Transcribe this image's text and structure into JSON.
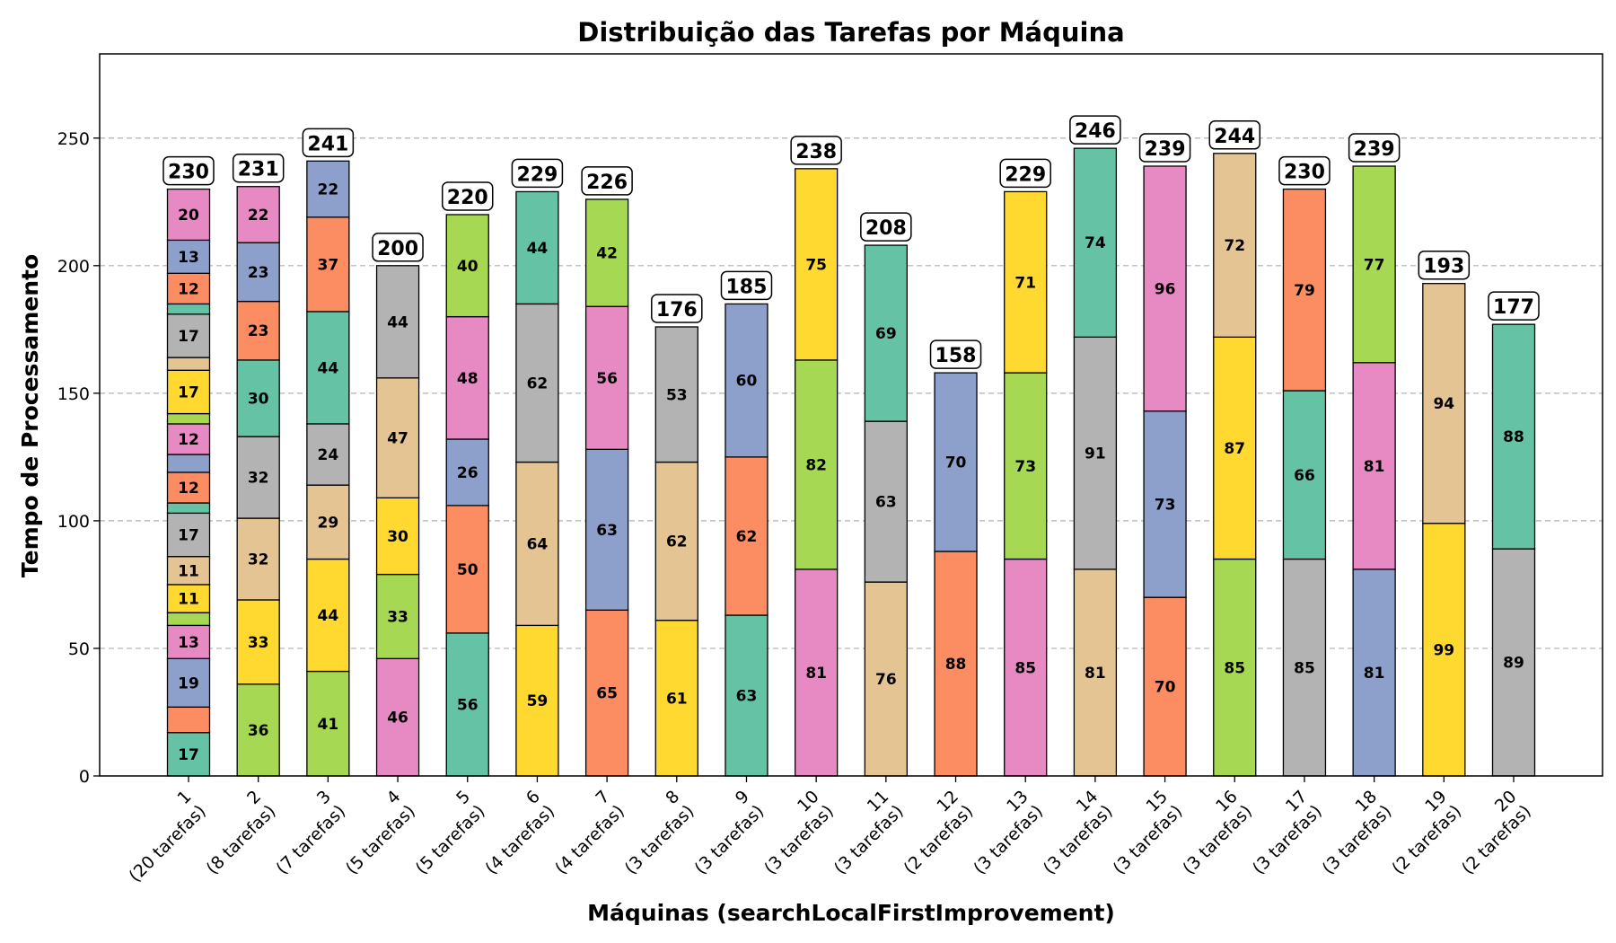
{
  "chart_data": {
    "type": "bar",
    "stacked": true,
    "title": "Distribuição das Tarefas por Máquina",
    "xlabel": "Máquinas (searchLocalFirstImprovement)",
    "ylabel": "Tempo de Processamento",
    "ylim": [
      0,
      283
    ],
    "yticks": [
      0,
      50,
      100,
      150,
      200,
      250
    ],
    "grid": "horizontal dashed",
    "palette": [
      "#66c2a5",
      "#fc8d62",
      "#8da0cb",
      "#e78ac3",
      "#a6d854",
      "#ffd92f",
      "#e5c494",
      "#b3b3b3"
    ],
    "categories": [
      {
        "line1": "1",
        "line2": "(20 tarefas)"
      },
      {
        "line1": "2",
        "line2": "(8 tarefas)"
      },
      {
        "line1": "3",
        "line2": "(7 tarefas)"
      },
      {
        "line1": "4",
        "line2": "(5 tarefas)"
      },
      {
        "line1": "5",
        "line2": "(5 tarefas)"
      },
      {
        "line1": "6",
        "line2": "(4 tarefas)"
      },
      {
        "line1": "7",
        "line2": "(4 tarefas)"
      },
      {
        "line1": "8",
        "line2": "(3 tarefas)"
      },
      {
        "line1": "9",
        "line2": "(3 tarefas)"
      },
      {
        "line1": "10",
        "line2": "(3 tarefas)"
      },
      {
        "line1": "11",
        "line2": "(3 tarefas)"
      },
      {
        "line1": "12",
        "line2": "(2 tarefas)"
      },
      {
        "line1": "13",
        "line2": "(3 tarefas)"
      },
      {
        "line1": "14",
        "line2": "(3 tarefas)"
      },
      {
        "line1": "15",
        "line2": "(3 tarefas)"
      },
      {
        "line1": "16",
        "line2": "(3 tarefas)"
      },
      {
        "line1": "17",
        "line2": "(3 tarefas)"
      },
      {
        "line1": "18",
        "line2": "(3 tarefas)"
      },
      {
        "line1": "19",
        "line2": "(2 tarefas)"
      },
      {
        "line1": "20",
        "line2": "(2 tarefas)"
      }
    ],
    "machines": [
      {
        "total": 230,
        "segments": [
          {
            "value": 17,
            "color": "#66c2a5",
            "label": "17"
          },
          {
            "value": 10,
            "color": "#fc8d62",
            "label": ""
          },
          {
            "value": 19,
            "color": "#8da0cb",
            "label": "19"
          },
          {
            "value": 13,
            "color": "#e78ac3",
            "label": "13"
          },
          {
            "value": 5,
            "color": "#a6d854",
            "label": ""
          },
          {
            "value": 11,
            "color": "#ffd92f",
            "label": "11"
          },
          {
            "value": 11,
            "color": "#e5c494",
            "label": "11"
          },
          {
            "value": 17,
            "color": "#b3b3b3",
            "label": "17"
          },
          {
            "value": 4,
            "color": "#66c2a5",
            "label": ""
          },
          {
            "value": 12,
            "color": "#fc8d62",
            "label": "12"
          },
          {
            "value": 7,
            "color": "#8da0cb",
            "label": ""
          },
          {
            "value": 12,
            "color": "#e78ac3",
            "label": "12"
          },
          {
            "value": 4,
            "color": "#a6d854",
            "label": ""
          },
          {
            "value": 17,
            "color": "#ffd92f",
            "label": "17"
          },
          {
            "value": 5,
            "color": "#e5c494",
            "label": ""
          },
          {
            "value": 17,
            "color": "#b3b3b3",
            "label": "17"
          },
          {
            "value": 4,
            "color": "#66c2a5",
            "label": ""
          },
          {
            "value": 12,
            "color": "#fc8d62",
            "label": "12"
          },
          {
            "value": 13,
            "color": "#8da0cb",
            "label": "13"
          },
          {
            "value": 20,
            "color": "#e78ac3",
            "label": "20"
          }
        ]
      },
      {
        "total": 231,
        "segments": [
          {
            "value": 36,
            "color": "#a6d854",
            "label": "36"
          },
          {
            "value": 33,
            "color": "#ffd92f",
            "label": "33"
          },
          {
            "value": 32,
            "color": "#e5c494",
            "label": "32"
          },
          {
            "value": 32,
            "color": "#b3b3b3",
            "label": "32"
          },
          {
            "value": 30,
            "color": "#66c2a5",
            "label": "30"
          },
          {
            "value": 23,
            "color": "#fc8d62",
            "label": "23"
          },
          {
            "value": 23,
            "color": "#8da0cb",
            "label": "23"
          },
          {
            "value": 22,
            "color": "#e78ac3",
            "label": "22"
          }
        ]
      },
      {
        "total": 241,
        "segments": [
          {
            "value": 41,
            "color": "#a6d854",
            "label": "41"
          },
          {
            "value": 44,
            "color": "#ffd92f",
            "label": "44"
          },
          {
            "value": 29,
            "color": "#e5c494",
            "label": "29"
          },
          {
            "value": 24,
            "color": "#b3b3b3",
            "label": "24"
          },
          {
            "value": 44,
            "color": "#66c2a5",
            "label": "44"
          },
          {
            "value": 37,
            "color": "#fc8d62",
            "label": "37"
          },
          {
            "value": 22,
            "color": "#8da0cb",
            "label": "22"
          }
        ]
      },
      {
        "total": 200,
        "segments": [
          {
            "value": 46,
            "color": "#e78ac3",
            "label": "46"
          },
          {
            "value": 33,
            "color": "#a6d854",
            "label": "33"
          },
          {
            "value": 30,
            "color": "#ffd92f",
            "label": "30"
          },
          {
            "value": 47,
            "color": "#e5c494",
            "label": "47"
          },
          {
            "value": 44,
            "color": "#b3b3b3",
            "label": "44"
          }
        ]
      },
      {
        "total": 220,
        "segments": [
          {
            "value": 56,
            "color": "#66c2a5",
            "label": "56"
          },
          {
            "value": 50,
            "color": "#fc8d62",
            "label": "50"
          },
          {
            "value": 26,
            "color": "#8da0cb",
            "label": "26"
          },
          {
            "value": 48,
            "color": "#e78ac3",
            "label": "48"
          },
          {
            "value": 40,
            "color": "#a6d854",
            "label": "40"
          }
        ]
      },
      {
        "total": 229,
        "segments": [
          {
            "value": 59,
            "color": "#ffd92f",
            "label": "59"
          },
          {
            "value": 64,
            "color": "#e5c494",
            "label": "64"
          },
          {
            "value": 62,
            "color": "#b3b3b3",
            "label": "62"
          },
          {
            "value": 44,
            "color": "#66c2a5",
            "label": "44"
          }
        ]
      },
      {
        "total": 226,
        "segments": [
          {
            "value": 65,
            "color": "#fc8d62",
            "label": "65"
          },
          {
            "value": 63,
            "color": "#8da0cb",
            "label": "63"
          },
          {
            "value": 56,
            "color": "#e78ac3",
            "label": "56"
          },
          {
            "value": 42,
            "color": "#a6d854",
            "label": "42"
          }
        ]
      },
      {
        "total": 176,
        "segments": [
          {
            "value": 61,
            "color": "#ffd92f",
            "label": "61"
          },
          {
            "value": 62,
            "color": "#e5c494",
            "label": "62"
          },
          {
            "value": 53,
            "color": "#b3b3b3",
            "label": "53"
          }
        ]
      },
      {
        "total": 185,
        "segments": [
          {
            "value": 63,
            "color": "#66c2a5",
            "label": "63"
          },
          {
            "value": 62,
            "color": "#fc8d62",
            "label": "62"
          },
          {
            "value": 60,
            "color": "#8da0cb",
            "label": "60"
          }
        ]
      },
      {
        "total": 238,
        "segments": [
          {
            "value": 81,
            "color": "#e78ac3",
            "label": "81"
          },
          {
            "value": 82,
            "color": "#a6d854",
            "label": "82"
          },
          {
            "value": 75,
            "color": "#ffd92f",
            "label": "75"
          }
        ]
      },
      {
        "total": 208,
        "segments": [
          {
            "value": 76,
            "color": "#e5c494",
            "label": "76"
          },
          {
            "value": 63,
            "color": "#b3b3b3",
            "label": "63"
          },
          {
            "value": 69,
            "color": "#66c2a5",
            "label": "69"
          }
        ]
      },
      {
        "total": 158,
        "segments": [
          {
            "value": 88,
            "color": "#fc8d62",
            "label": "88"
          },
          {
            "value": 70,
            "color": "#8da0cb",
            "label": "70"
          }
        ]
      },
      {
        "total": 229,
        "segments": [
          {
            "value": 85,
            "color": "#e78ac3",
            "label": "85"
          },
          {
            "value": 73,
            "color": "#a6d854",
            "label": "73"
          },
          {
            "value": 71,
            "color": "#ffd92f",
            "label": "71"
          }
        ]
      },
      {
        "total": 246,
        "segments": [
          {
            "value": 81,
            "color": "#e5c494",
            "label": "81"
          },
          {
            "value": 91,
            "color": "#b3b3b3",
            "label": "91"
          },
          {
            "value": 74,
            "color": "#66c2a5",
            "label": "74"
          }
        ]
      },
      {
        "total": 239,
        "segments": [
          {
            "value": 70,
            "color": "#fc8d62",
            "label": "70"
          },
          {
            "value": 73,
            "color": "#8da0cb",
            "label": "73"
          },
          {
            "value": 96,
            "color": "#e78ac3",
            "label": "96"
          }
        ]
      },
      {
        "total": 244,
        "segments": [
          {
            "value": 85,
            "color": "#a6d854",
            "label": "85"
          },
          {
            "value": 87,
            "color": "#ffd92f",
            "label": "87"
          },
          {
            "value": 72,
            "color": "#e5c494",
            "label": "72"
          }
        ]
      },
      {
        "total": 230,
        "segments": [
          {
            "value": 85,
            "color": "#b3b3b3",
            "label": "85"
          },
          {
            "value": 66,
            "color": "#66c2a5",
            "label": "66"
          },
          {
            "value": 79,
            "color": "#fc8d62",
            "label": "79"
          }
        ]
      },
      {
        "total": 239,
        "segments": [
          {
            "value": 81,
            "color": "#8da0cb",
            "label": "81"
          },
          {
            "value": 81,
            "color": "#e78ac3",
            "label": "81"
          },
          {
            "value": 77,
            "color": "#a6d854",
            "label": "77"
          }
        ]
      },
      {
        "total": 193,
        "segments": [
          {
            "value": 99,
            "color": "#ffd92f",
            "label": "99"
          },
          {
            "value": 94,
            "color": "#e5c494",
            "label": "94"
          }
        ]
      },
      {
        "total": 177,
        "segments": [
          {
            "value": 89,
            "color": "#b3b3b3",
            "label": "89"
          },
          {
            "value": 88,
            "color": "#66c2a5",
            "label": "88"
          }
        ]
      }
    ]
  }
}
